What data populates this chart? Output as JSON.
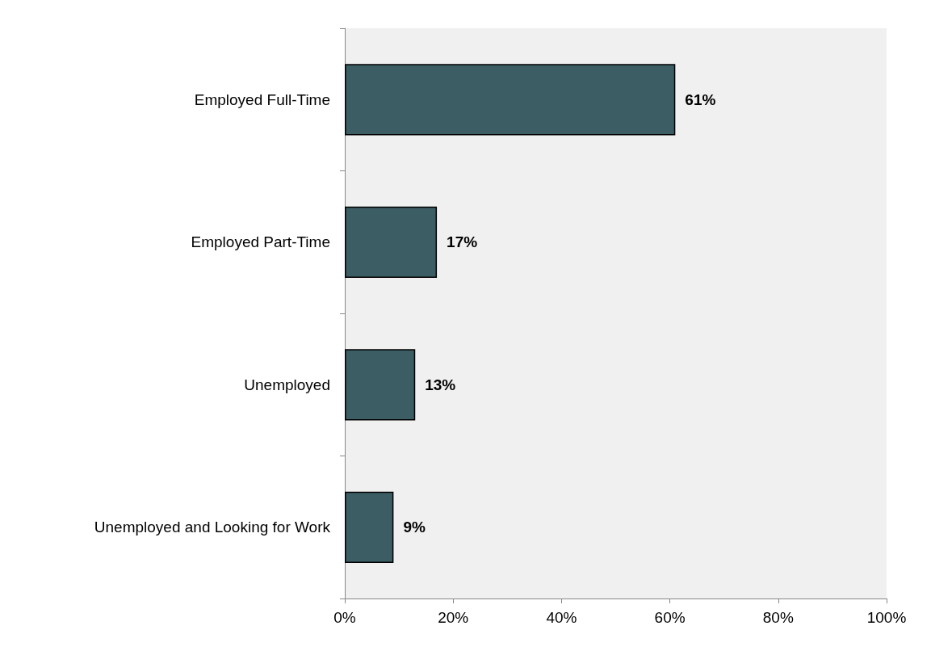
{
  "chart_data": {
    "type": "bar",
    "orientation": "horizontal",
    "categories": [
      "Employed Full-Time",
      "Employed Part-Time",
      "Unemployed",
      "Unemployed and Looking for Work"
    ],
    "values": [
      61,
      17,
      13,
      9
    ],
    "value_labels": [
      "61%",
      "17%",
      "13%",
      "9%"
    ],
    "color": "#3b5d63",
    "xlim": [
      0,
      100
    ],
    "xticks": [
      {
        "value": 0,
        "label": "0%"
      },
      {
        "value": 20,
        "label": "20%"
      },
      {
        "value": 40,
        "label": "40%"
      },
      {
        "value": 60,
        "label": "60%"
      },
      {
        "value": 80,
        "label": "80%"
      },
      {
        "value": 100,
        "label": "100%"
      }
    ],
    "grid": false
  }
}
